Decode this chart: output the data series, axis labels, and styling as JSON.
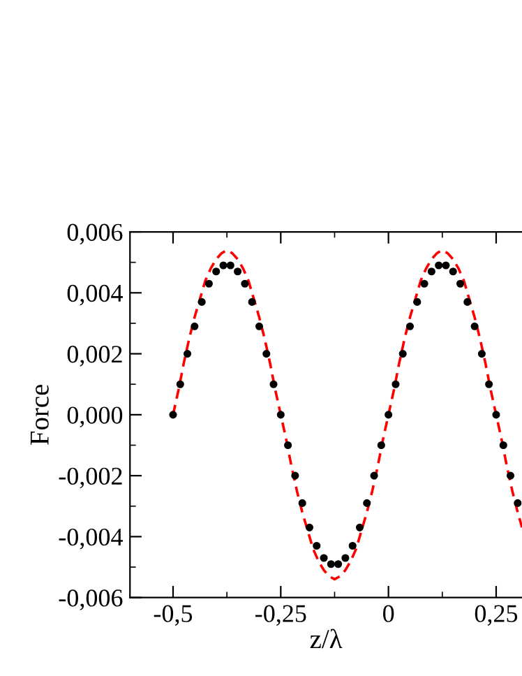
{
  "chart_data": {
    "type": "scatter",
    "xlabel": "z/λ",
    "ylabel": "Force",
    "xlim": [
      -0.6,
      0.31
    ],
    "ylim": [
      -0.006,
      0.006
    ],
    "xticks": [
      {
        "value": -0.5,
        "label": "-0,5"
      },
      {
        "value": -0.25,
        "label": "-0,25"
      },
      {
        "value": 0,
        "label": "0"
      },
      {
        "value": 0.25,
        "label": "0,25"
      }
    ],
    "yticks": [
      {
        "value": -0.006,
        "label": "-0,006"
      },
      {
        "value": -0.004,
        "label": "-0,004"
      },
      {
        "value": -0.002,
        "label": "-0,002"
      },
      {
        "value": 0,
        "label": "0,000"
      },
      {
        "value": 0.002,
        "label": "0,002"
      },
      {
        "value": 0.004,
        "label": "0,004"
      },
      {
        "value": 0.006,
        "label": "0,006"
      }
    ],
    "grid": false,
    "legend": false,
    "series": [
      {
        "type": "line",
        "color": "#ff0000",
        "line_style": "dashed",
        "marker": "none",
        "x": [
          -0.5,
          -0.4875,
          -0.475,
          -0.4625,
          -0.45,
          -0.4375,
          -0.425,
          -0.4125,
          -0.4,
          -0.3875,
          -0.375,
          -0.3625,
          -0.35,
          -0.3375,
          -0.325,
          -0.3125,
          -0.3,
          -0.2875,
          -0.275,
          -0.2625,
          -0.25,
          -0.2375,
          -0.225,
          -0.2125,
          -0.2,
          -0.1875,
          -0.175,
          -0.1625,
          -0.15,
          -0.1375,
          -0.125,
          -0.1125,
          -0.1,
          -0.0875,
          -0.075,
          -0.0625,
          -0.05,
          -0.0375,
          -0.025,
          -0.0125,
          0,
          0.0125,
          0.025,
          0.0375,
          0.05,
          0.0625,
          0.075,
          0.0875,
          0.1,
          0.1125,
          0.125,
          0.1375,
          0.15,
          0.1625,
          0.175,
          0.1875,
          0.2,
          0.2125,
          0.225,
          0.2375,
          0.25,
          0.2625,
          0.275,
          0.2875,
          0.3,
          0.31
        ],
        "values": [
          0,
          0.0008,
          0.0017,
          0.0025,
          0.0032,
          0.0038,
          0.0044,
          0.0048,
          0.0051,
          0.0053,
          0.0054,
          0.0053,
          0.0051,
          0.0048,
          0.0044,
          0.0038,
          0.0032,
          0.0025,
          0.0017,
          0.0008,
          0,
          -0.0008,
          -0.0017,
          -0.0025,
          -0.0032,
          -0.0038,
          -0.0044,
          -0.0048,
          -0.0051,
          -0.0053,
          -0.0054,
          -0.0053,
          -0.0051,
          -0.0048,
          -0.0044,
          -0.0038,
          -0.0032,
          -0.0025,
          -0.0017,
          -0.0008,
          0,
          0.0008,
          0.0017,
          0.0025,
          0.0032,
          0.0038,
          0.0044,
          0.0048,
          0.0051,
          0.0053,
          0.0054,
          0.0053,
          0.0051,
          0.0048,
          0.0044,
          0.0038,
          0.0032,
          0.0025,
          0.0017,
          0.0008,
          0,
          -0.0008,
          -0.0017,
          -0.0025,
          -0.0032,
          -0.0037
        ]
      },
      {
        "color": "#000000",
        "marker": "circle",
        "x": [
          -0.5,
          -0.4833,
          -0.4667,
          -0.45,
          -0.4333,
          -0.4167,
          -0.4,
          -0.3833,
          -0.3667,
          -0.35,
          -0.3333,
          -0.3167,
          -0.3,
          -0.2833,
          -0.2667,
          -0.25,
          -0.2333,
          -0.2167,
          -0.2,
          -0.1833,
          -0.1667,
          -0.15,
          -0.1333,
          -0.1167,
          -0.1,
          -0.0833,
          -0.0667,
          -0.05,
          -0.0333,
          -0.0167,
          0,
          0.0167,
          0.0333,
          0.05,
          0.0667,
          0.0833,
          0.1,
          0.1167,
          0.1333,
          0.15,
          0.1667,
          0.1833,
          0.2,
          0.2167,
          0.2333,
          0.25,
          0.2667,
          0.2833,
          0.3
        ],
        "values": [
          0,
          0.001,
          0.002,
          0.0029,
          0.0037,
          0.0043,
          0.0047,
          0.0049,
          0.0049,
          0.0047,
          0.0043,
          0.0037,
          0.0029,
          0.002,
          0.001,
          0,
          -0.001,
          -0.002,
          -0.0029,
          -0.0037,
          -0.0043,
          -0.0047,
          -0.0049,
          -0.0049,
          -0.0047,
          -0.0043,
          -0.0037,
          -0.0029,
          -0.002,
          -0.001,
          0,
          0.001,
          0.002,
          0.0029,
          0.0037,
          0.0043,
          0.0047,
          0.0049,
          0.0049,
          0.0047,
          0.0043,
          0.0037,
          0.0029,
          0.002,
          0.001,
          0,
          -0.001,
          -0.002,
          -0.0029
        ]
      }
    ]
  }
}
